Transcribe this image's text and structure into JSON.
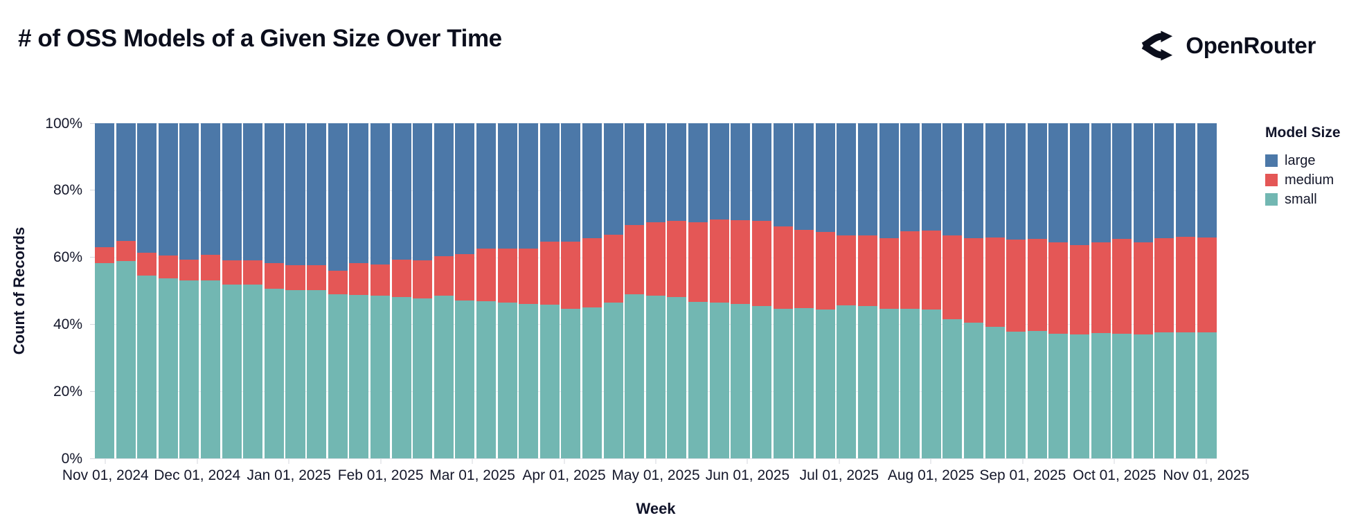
{
  "header": {
    "title": "# of OSS Models of a Given Size Over Time",
    "logo_text": "OpenRouter",
    "logo_icon": "openrouter-fork-arrows-icon",
    "text_color": "#0b0e1c"
  },
  "legend": {
    "title": "Model Size",
    "items": [
      {
        "label": "large"
      },
      {
        "label": "medium"
      },
      {
        "label": "small"
      }
    ]
  },
  "chart_data": {
    "type": "bar",
    "stacked": true,
    "normalized": true,
    "title": "# of OSS Models of a Given Size Over Time",
    "xlabel": "Week",
    "ylabel": "Count of Records",
    "ylim": [
      0,
      100
    ],
    "grid": true,
    "legend_position": "right",
    "legend_title": "Model Size",
    "x_tick_labels": [
      "Nov 01, 2024",
      "Dec 01, 2024",
      "Jan 01, 2025",
      "Feb 01, 2025",
      "Mar 01, 2025",
      "Apr 01, 2025",
      "May 01, 2025",
      "Jun 01, 2025",
      "Jul 01, 2025",
      "Aug 01, 2025",
      "Sep 01, 2025",
      "Oct 01, 2025",
      "Nov 01, 2025"
    ],
    "y_ticks": [
      0,
      20,
      40,
      60,
      80,
      100
    ],
    "y_tick_labels": [
      "0%",
      "20%",
      "40%",
      "60%",
      "80%",
      "100%"
    ],
    "weeks": 53,
    "values_unit": "% of records per weekly bar",
    "series": [
      {
        "name": "large",
        "color": "#4c78a8",
        "values": [
          37.0,
          35.2,
          38.7,
          39.5,
          40.8,
          39.2,
          41.0,
          41.0,
          41.8,
          42.3,
          42.3,
          44.1,
          41.7,
          42.1,
          40.6,
          41.0,
          39.7,
          39.0,
          37.3,
          37.3,
          37.4,
          35.4,
          35.4,
          34.4,
          33.2,
          30.4,
          29.5,
          29.2,
          29.5,
          28.7,
          28.9,
          29.1,
          30.8,
          31.9,
          32.5,
          33.5,
          33.4,
          34.2,
          32.3,
          32.1,
          33.4,
          34.2,
          34.1,
          34.8,
          34.6,
          35.6,
          36.3,
          35.6,
          34.6,
          35.5,
          34.4,
          33.9,
          34.1
        ]
      },
      {
        "name": "medium",
        "color": "#e45756",
        "values": [
          4.8,
          6.0,
          6.8,
          6.8,
          6.2,
          7.6,
          7.1,
          7.1,
          7.6,
          7.4,
          7.4,
          7.0,
          9.6,
          9.3,
          11.2,
          11.3,
          11.7,
          13.8,
          15.9,
          16.2,
          16.5,
          18.7,
          20.0,
          20.6,
          20.3,
          20.7,
          21.9,
          22.6,
          23.9,
          24.8,
          25.0,
          25.5,
          24.6,
          23.2,
          23.1,
          20.8,
          21.2,
          21.2,
          23.0,
          23.5,
          25.1,
          25.4,
          26.7,
          27.4,
          27.4,
          27.3,
          26.7,
          27.1,
          28.3,
          27.6,
          28.1,
          28.6,
          28.2
        ]
      },
      {
        "name": "small",
        "color": "#72b7b2",
        "values": [
          58.2,
          58.8,
          54.5,
          53.7,
          53.0,
          53.2,
          51.9,
          51.9,
          50.6,
          50.3,
          50.3,
          48.9,
          48.7,
          48.6,
          48.2,
          47.7,
          48.6,
          47.2,
          46.8,
          46.5,
          46.1,
          45.9,
          44.6,
          45.0,
          46.5,
          48.9,
          48.6,
          48.2,
          46.6,
          46.5,
          46.1,
          45.4,
          44.6,
          44.9,
          44.4,
          45.7,
          45.4,
          44.6,
          44.7,
          44.4,
          41.5,
          40.4,
          39.2,
          37.8,
          38.0,
          37.1,
          37.0,
          37.3,
          37.1,
          36.9,
          37.5,
          37.5,
          37.7
        ]
      }
    ]
  }
}
